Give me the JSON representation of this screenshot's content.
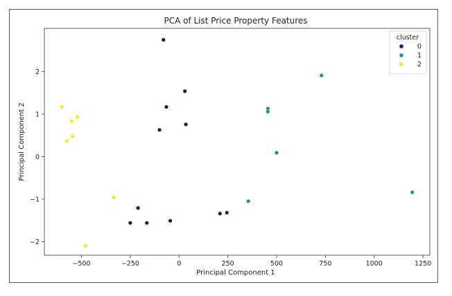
{
  "chart_data": {
    "type": "scatter",
    "title": "PCA of List Price Property Features",
    "xlabel": "Principal Component 1",
    "ylabel": "Principal Component 2",
    "xlim": [
      -690,
      1285
    ],
    "ylim": [
      -2.32,
      3.02
    ],
    "xticks": [
      -500,
      -250,
      0,
      250,
      500,
      750,
      1000,
      1250
    ],
    "xtick_labels": [
      "−500",
      "−250",
      "0",
      "250",
      "500",
      "750",
      "1000",
      "1250"
    ],
    "yticks": [
      -2,
      -1,
      0,
      1,
      2
    ],
    "ytick_labels": [
      "−2",
      "−1",
      "0",
      "1",
      "2"
    ],
    "grid": false,
    "legend": {
      "title": "cluster",
      "position": "top-right",
      "entries": [
        {
          "label": "0",
          "color": "#440154"
        },
        {
          "label": "1",
          "color": "#21918c"
        },
        {
          "label": "2",
          "color": "#fde725"
        }
      ]
    },
    "series": [
      {
        "name": "0",
        "color": "#440154",
        "points": [
          [
            -80,
            2.75
          ],
          [
            30,
            1.54
          ],
          [
            -65,
            1.17
          ],
          [
            35,
            0.76
          ],
          [
            -100,
            0.63
          ],
          [
            -210,
            -1.21
          ],
          [
            -250,
            -1.56
          ],
          [
            -165,
            -1.56
          ],
          [
            -45,
            -1.51
          ],
          [
            210,
            -1.34
          ],
          [
            245,
            -1.32
          ]
        ]
      },
      {
        "name": "1",
        "color": "#21918c",
        "points": [
          [
            730,
            1.91
          ],
          [
            455,
            1.13
          ],
          [
            455,
            1.06
          ],
          [
            500,
            0.09
          ],
          [
            355,
            -1.05
          ],
          [
            1195,
            -0.84
          ]
        ]
      },
      {
        "name": "2",
        "color": "#fde725",
        "points": [
          [
            -600,
            1.17
          ],
          [
            -550,
            0.84
          ],
          [
            -520,
            0.93
          ],
          [
            -545,
            0.48
          ],
          [
            -575,
            0.37
          ],
          [
            -335,
            -0.96
          ],
          [
            -480,
            -2.1
          ]
        ]
      }
    ]
  }
}
